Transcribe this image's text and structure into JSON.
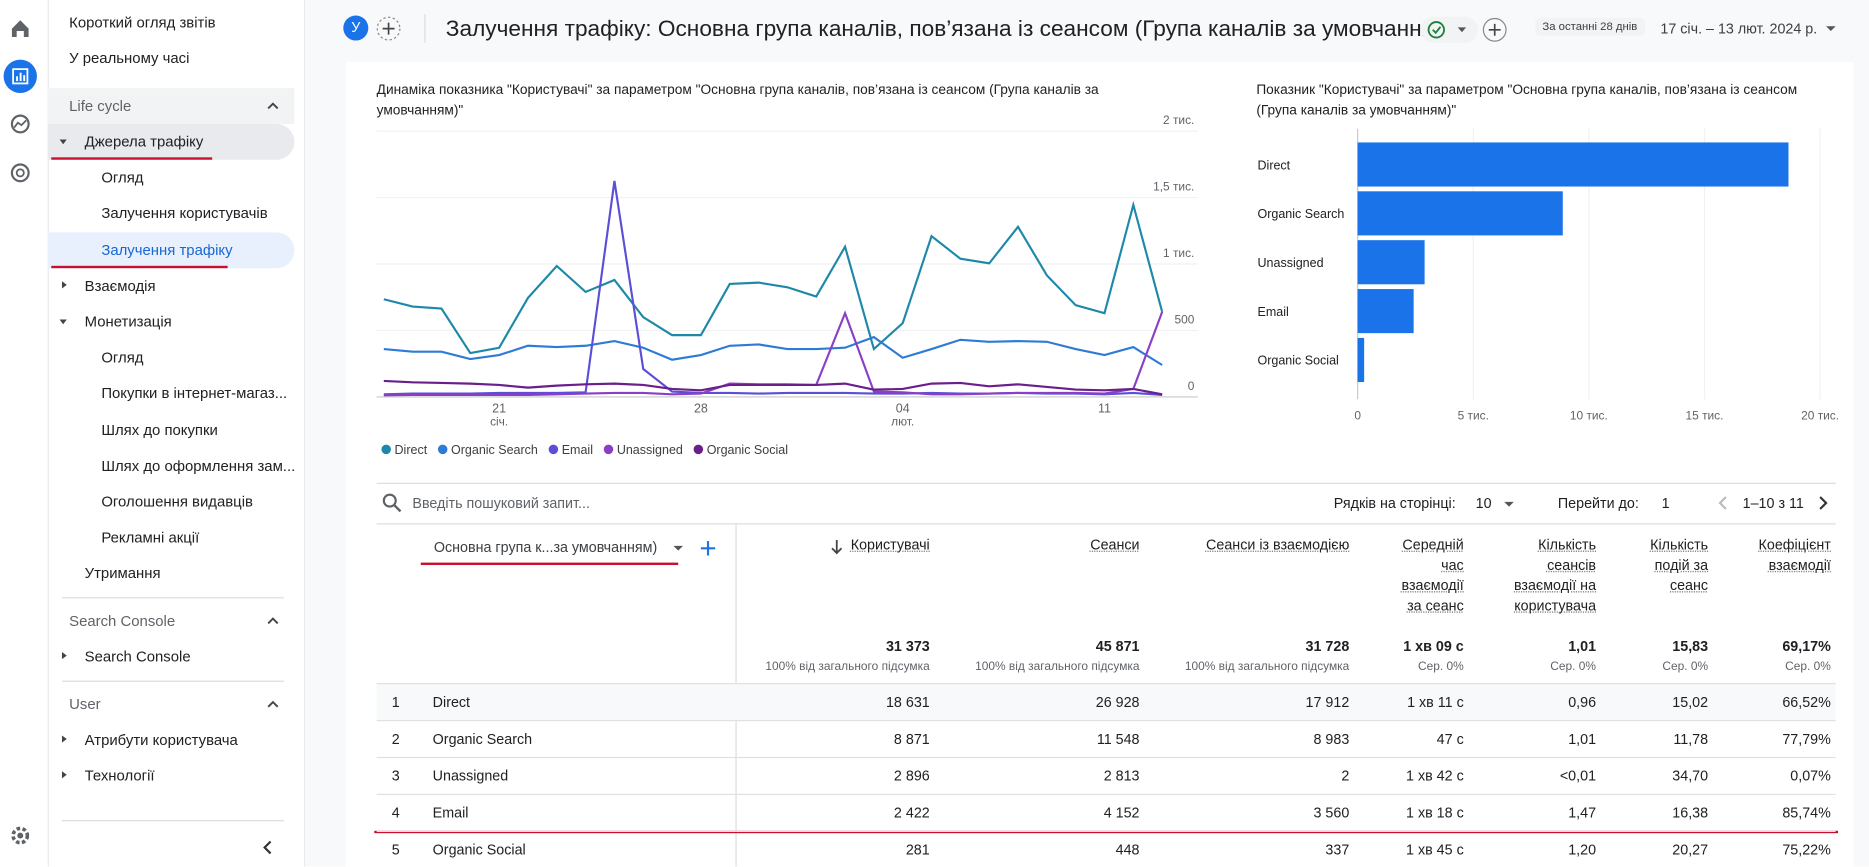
{
  "nav": {
    "items": [
      "Короткий огляд звітів",
      "У реальному часі"
    ],
    "sections": [
      {
        "title": "Life cycle",
        "items": [
          "Джерела трафіку",
          "Огляд",
          "Залучення користувачів",
          "Залучення трафіку",
          "Взаємодія",
          "Монетизація",
          "Огляд",
          "Покупки в інтернет-магаз...",
          "Шлях до покупки",
          "Шлях до оформлення зам...",
          "Оголошення видавців",
          "Рекламні акції",
          "Утримання"
        ]
      },
      {
        "title": "Search Console",
        "items": [
          "Search Console"
        ]
      },
      {
        "title": "User",
        "items": [
          "Атрибути користувача",
          "Технології"
        ]
      }
    ]
  },
  "header": {
    "avatar": "У",
    "title": "Залучення трафіку: Основна група каналів, пов’язана із сеансом (Група каналів за умовчанням)",
    "date_range_label": "За останні 28 днів",
    "date_range": "17 січ. – 13 лют. 2024 р."
  },
  "chart_data": [
    {
      "type": "line",
      "title": "Динаміка показника \"Користувачі\" за параметром \"Основна група каналів, пов’язана із сеансом (Група каналів за умовчанням)\"",
      "categories": [
        null,
        null,
        null,
        null,
        "21",
        null,
        null,
        null,
        null,
        null,
        null,
        "28",
        null,
        null,
        null,
        null,
        null,
        null,
        "04",
        null,
        null,
        null,
        null,
        null,
        null,
        "11",
        null,
        null
      ],
      "sublabels": [
        null,
        null,
        null,
        null,
        "січ.",
        null,
        null,
        null,
        null,
        null,
        null,
        null,
        null,
        null,
        null,
        null,
        null,
        null,
        "лют.",
        null,
        null,
        null,
        null,
        null,
        null,
        null,
        null,
        null
      ],
      "series": [
        {
          "name": "Direct",
          "color": "#1e88a8",
          "values": [
            735,
            680,
            665,
            330,
            370,
            745,
            985,
            790,
            880,
            600,
            465,
            465,
            850,
            860,
            825,
            755,
            1130,
            360,
            555,
            1210,
            1040,
            1005,
            1280,
            915,
            690,
            630,
            1445,
            640
          ]
        },
        {
          "name": "Organic Search",
          "color": "#2e7bd6",
          "values": [
            360,
            340,
            340,
            285,
            315,
            385,
            375,
            385,
            420,
            370,
            280,
            315,
            385,
            395,
            360,
            360,
            370,
            450,
            295,
            360,
            430,
            415,
            420,
            415,
            360,
            315,
            375,
            240
          ]
        },
        {
          "name": "Email",
          "color": "#5a4fd6",
          "values": [
            20,
            25,
            25,
            25,
            30,
            30,
            30,
            35,
            1625,
            210,
            40,
            30,
            30,
            25,
            30,
            30,
            30,
            25,
            25,
            30,
            25,
            25,
            30,
            25,
            25,
            20,
            30,
            15
          ]
        },
        {
          "name": "Unassigned",
          "color": "#8a3fc4",
          "values": [
            12,
            15,
            15,
            15,
            15,
            15,
            20,
            25,
            30,
            30,
            20,
            25,
            100,
            95,
            95,
            90,
            630,
            40,
            35,
            20,
            20,
            25,
            30,
            30,
            30,
            25,
            60,
            640
          ]
        },
        {
          "name": "Organic Social",
          "color": "#6a1f8a",
          "values": [
            120,
            110,
            105,
            100,
            90,
            70,
            85,
            95,
            100,
            90,
            60,
            50,
            90,
            90,
            90,
            90,
            100,
            55,
            60,
            100,
            105,
            80,
            95,
            75,
            55,
            50,
            60,
            20
          ]
        }
      ],
      "ylim": [
        0,
        2000
      ],
      "yticks": [
        0,
        500,
        {
          "value": 1000,
          "label": "1 тис."
        },
        {
          "value": 1500,
          "label": "1,5 тис."
        },
        {
          "value": 2000,
          "label": "2 тис."
        }
      ]
    },
    {
      "type": "bar",
      "orientation": "horizontal",
      "title": "Показник \"Користувачі\" за параметром \"Основна група каналів, пов’язана із сеансом (Група каналів за умовчанням)\"",
      "categories": [
        "Direct",
        "Organic Search",
        "Unassigned",
        "Email",
        "Organic Social"
      ],
      "values": [
        18631,
        8871,
        2896,
        2422,
        281
      ],
      "color": "#1a73e8",
      "xlim": [
        0,
        20000
      ],
      "xticks": [
        0,
        {
          "value": 5000,
          "label": "5 тис."
        },
        {
          "value": 10000,
          "label": "10 тис."
        },
        {
          "value": 15000,
          "label": "15 тис."
        },
        {
          "value": 20000,
          "label": "20 тис."
        }
      ]
    }
  ],
  "table": {
    "search_placeholder": "Введіть пошуковий запит...",
    "rows_per_page_label": "Рядків на сторінці:",
    "rows_per_page": "10",
    "goto_label": "Перейти до:",
    "goto_value": "1",
    "pagination": "1–10 з 11",
    "dimension": "Основна група к...за умовчанням)",
    "columns": [
      "Користувачі",
      "Сеанси",
      "Сеанси із взаємодією",
      "Середній час взаємодії за сеанс",
      "Кількість сеансів взаємодії на користувача",
      "Кількість подій за сеанс",
      "Коефіцієнт взаємодії"
    ],
    "totals": [
      "31 373",
      "45 871",
      "31 728",
      "1 хв 09 с",
      "1,01",
      "15,83",
      "69,17%"
    ],
    "totals_notes": [
      "100% від загального підсумка",
      "100% від загального підсумка",
      "100% від загального підсумка",
      "Сер. 0%",
      "Сер. 0%",
      "Сер. 0%",
      "Сер. 0%"
    ],
    "rows": [
      [
        "1",
        "Direct",
        "18 631",
        "26 928",
        "17 912",
        "1 хв 11 с",
        "0,96",
        "15,02",
        "66,52%"
      ],
      [
        "2",
        "Organic Search",
        "8 871",
        "11 548",
        "8 983",
        "47 с",
        "1,01",
        "11,78",
        "77,79%"
      ],
      [
        "3",
        "Unassigned",
        "2 896",
        "2 813",
        "2",
        "1 хв 42 с",
        "<0,01",
        "34,70",
        "0,07%"
      ],
      [
        "4",
        "Email",
        "2 422",
        "4 152",
        "3 560",
        "1 хв 18 с",
        "1,47",
        "16,38",
        "85,74%"
      ],
      [
        "5",
        "Organic Social",
        "281",
        "448",
        "337",
        "1 хв 45 с",
        "1,20",
        "20,27",
        "75,22%"
      ]
    ]
  }
}
